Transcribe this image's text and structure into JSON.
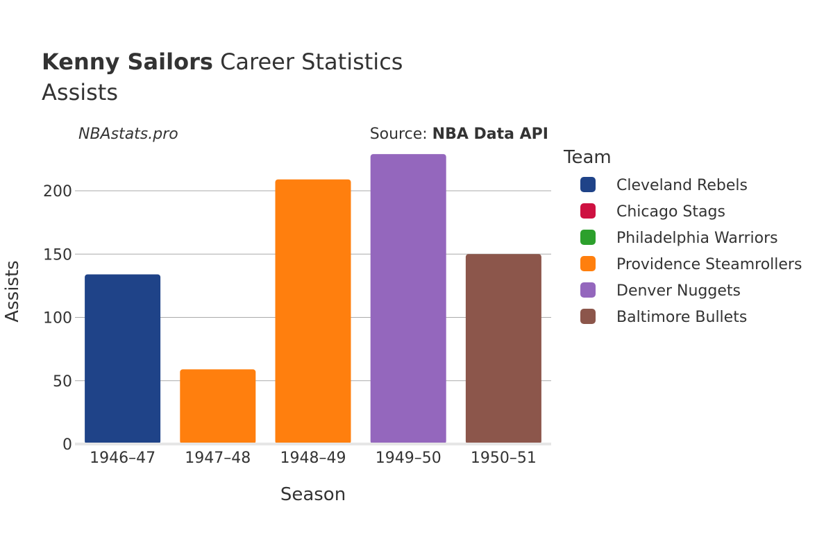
{
  "header": {
    "title_bold": "Kenny Sailors",
    "title_rest": " Career Statistics",
    "subtitle": "Assists",
    "watermark": "NBAstats.pro",
    "source_label": "Source: ",
    "source_name": "NBA Data API"
  },
  "legend": {
    "title": "Team",
    "items": [
      {
        "label": "Cleveland Rebels",
        "color": "#1f4388"
      },
      {
        "label": "Chicago Stags",
        "color": "#ce1141"
      },
      {
        "label": "Philadelphia Warriors",
        "color": "#2ca02c"
      },
      {
        "label": "Providence Steamrollers",
        "color": "#ff7f0e"
      },
      {
        "label": "Denver Nuggets",
        "color": "#9467bd"
      },
      {
        "label": "Baltimore Bullets",
        "color": "#8c564b"
      }
    ]
  },
  "chart_data": {
    "type": "bar",
    "xlabel": "Season",
    "ylabel": "Assists",
    "ylim": [
      0,
      230
    ],
    "yticks": [
      0,
      50,
      100,
      150,
      200
    ],
    "grid": true,
    "legend_position": "right",
    "categories": [
      "1946–47",
      "1947–48",
      "1948–49",
      "1949–50",
      "1950–51"
    ],
    "values": [
      134,
      59,
      209,
      229,
      150
    ],
    "teams": [
      "Cleveland Rebels",
      "Providence Steamrollers",
      "Providence Steamrollers",
      "Denver Nuggets",
      "Baltimore Bullets"
    ],
    "colors": [
      "#1f4388",
      "#ff7f0e",
      "#ff7f0e",
      "#9467bd",
      "#8c564b"
    ]
  }
}
